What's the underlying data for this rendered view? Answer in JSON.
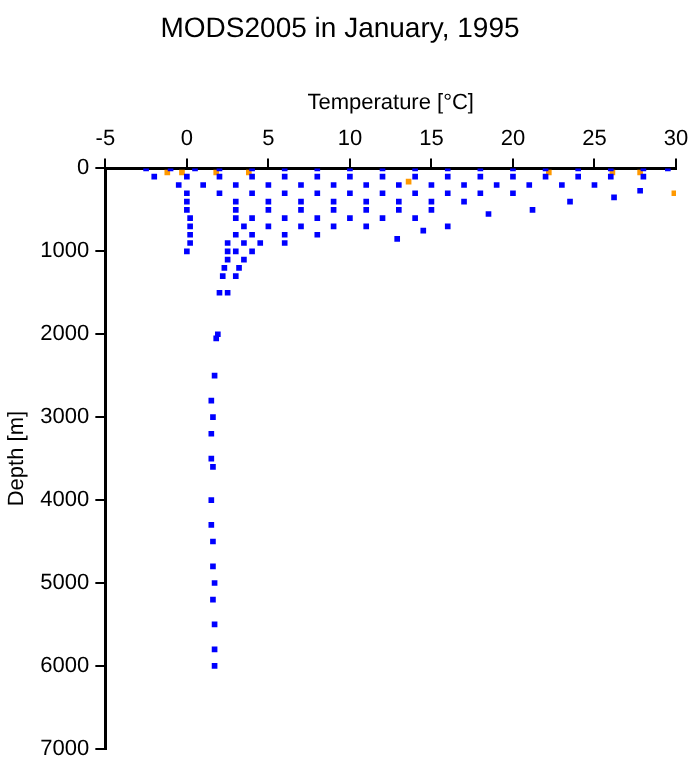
{
  "chart_data": {
    "type": "scatter",
    "title": "MODS2005 in January, 1995",
    "xlabel": "Temperature [°C]",
    "ylabel": "Depth [m]",
    "xlim": [
      -5,
      30
    ],
    "xticks": [
      -5,
      0,
      5,
      10,
      15,
      20,
      25,
      30
    ],
    "ylim": [
      7000,
      0
    ],
    "yticks": [
      0,
      1000,
      2000,
      3000,
      4000,
      5000,
      6000,
      7000
    ],
    "grid": false,
    "legend": false,
    "marker": "square",
    "series": [
      {
        "color": "#0000ff",
        "x": [
          -2.5,
          -1,
          0.5,
          2,
          4,
          6,
          8,
          10,
          12,
          14,
          16,
          18,
          20,
          22,
          24,
          26,
          28,
          29.5,
          -2,
          0,
          2,
          4,
          6,
          8,
          10,
          12,
          14,
          16,
          18,
          20,
          22,
          24,
          26,
          28,
          -0.5,
          1,
          3,
          5,
          7,
          9,
          11,
          13,
          15,
          17,
          19,
          21,
          23,
          25,
          0,
          2,
          4,
          6,
          8,
          10,
          12,
          14,
          16,
          18,
          20,
          0,
          3,
          5,
          7,
          9,
          11,
          13,
          15,
          17,
          0,
          3,
          5,
          7,
          9,
          11,
          13,
          15,
          0.2,
          3,
          4,
          6,
          8,
          10,
          12,
          14,
          0.2,
          3.5,
          5,
          7,
          9,
          11,
          0.2,
          3,
          4,
          6,
          8,
          0.2,
          2.5,
          3.5,
          4.5,
          6,
          0,
          2.5,
          3,
          4,
          2.5,
          3.5,
          2.3,
          3.2,
          2.2,
          3,
          2,
          2.5,
          12.9,
          14.5,
          16,
          18.5,
          21.2,
          23.5,
          26.2,
          27.8,
          1.9,
          1.8,
          1.7,
          1.5,
          1.6,
          1.5,
          1.5,
          1.6,
          1.5,
          1.5,
          1.6,
          1.6,
          1.7,
          1.6,
          1.7,
          1.7,
          1.7
        ],
        "values": [
          0,
          0,
          0,
          0,
          0,
          0,
          0,
          0,
          0,
          0,
          0,
          0,
          0,
          0,
          0,
          0,
          0,
          0,
          100,
          100,
          100,
          100,
          100,
          100,
          100,
          100,
          100,
          100,
          100,
          100,
          100,
          100,
          100,
          100,
          200,
          200,
          200,
          200,
          200,
          200,
          200,
          200,
          200,
          200,
          200,
          200,
          200,
          200,
          300,
          300,
          300,
          300,
          300,
          300,
          300,
          300,
          300,
          300,
          300,
          400,
          400,
          400,
          400,
          400,
          400,
          400,
          400,
          400,
          500,
          500,
          500,
          500,
          500,
          500,
          500,
          500,
          600,
          600,
          600,
          600,
          600,
          600,
          600,
          600,
          700,
          700,
          700,
          700,
          700,
          700,
          800,
          800,
          800,
          800,
          800,
          900,
          900,
          900,
          900,
          900,
          1000,
          1000,
          1000,
          1000,
          1100,
          1100,
          1200,
          1200,
          1300,
          1300,
          1500,
          1500,
          850,
          750,
          700,
          550,
          500,
          400,
          350,
          270,
          2000,
          2050,
          2500,
          2800,
          3000,
          3200,
          3500,
          3600,
          4000,
          4300,
          4500,
          4800,
          5000,
          5200,
          5500,
          5800,
          6000
        ]
      },
      {
        "color": "#ff9900",
        "x": [
          -1.2,
          -0.3,
          1.8,
          3.8,
          13.6,
          22.2,
          26.1,
          27.8,
          29.9
        ],
        "values": [
          50,
          50,
          50,
          50,
          160,
          50,
          50,
          50,
          300
        ]
      }
    ]
  }
}
